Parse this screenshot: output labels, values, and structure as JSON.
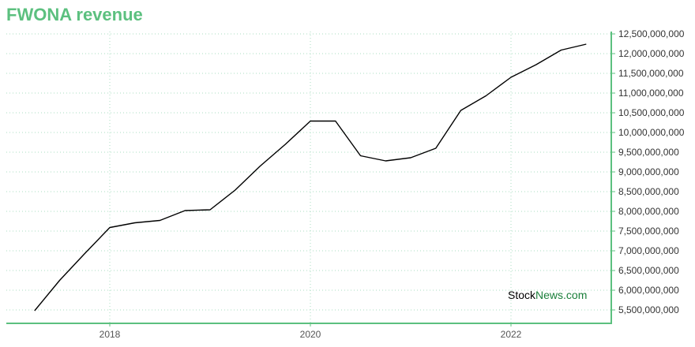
{
  "header": {
    "title": "FWONA revenue"
  },
  "watermark": {
    "part1": "Stock",
    "part2": "News",
    "part3": ".com"
  },
  "colors": {
    "title": "#5cc07f",
    "axis": "#5cc07f",
    "grid": "#a8dcc0",
    "line": "#000000"
  },
  "chart_data": {
    "type": "line",
    "title": "FWONA revenue",
    "xlabel": "",
    "ylabel": "",
    "xlim": [
      2017.0,
      2022.75
    ],
    "ylim": [
      5300000000,
      12600000000
    ],
    "x_ticks": [
      2018,
      2020,
      2022
    ],
    "x_tick_labels": [
      "2018",
      "2020",
      "2022"
    ],
    "y_ticks": [
      5500000000,
      6000000000,
      6500000000,
      7000000000,
      7500000000,
      8000000000,
      8500000000,
      9000000000,
      9500000000,
      10000000000,
      10500000000,
      11000000000,
      11500000000,
      12000000000,
      12500000000
    ],
    "y_tick_labels": [
      "5,500,000,000",
      "6,000,000,000",
      "6,500,000,000",
      "7,000,000,000",
      "7,500,000,000",
      "8,000,000,000",
      "8,500,000,000",
      "9,000,000,000",
      "9,500,000,000",
      "10,000,000,000",
      "10,500,000,000",
      "11,000,000,000",
      "11,500,000,000",
      "12,000,000,000",
      "12,500,000,000"
    ],
    "grid": true,
    "y_axis_position": "right",
    "series": [
      {
        "x": [
          2017.25,
          2017.5,
          2017.75,
          2018.0,
          2018.25,
          2018.5,
          2018.75,
          2019.0,
          2019.25,
          2019.5,
          2019.75,
          2020.0,
          2020.25,
          2020.5,
          2020.75,
          2021.0,
          2021.25,
          2021.5,
          2021.75,
          2022.0,
          2022.25,
          2022.5,
          2022.75
        ],
        "values": [
          5480000000,
          6250000000,
          6930000000,
          7590000000,
          7710000000,
          7770000000,
          8020000000,
          8040000000,
          8540000000,
          9150000000,
          9700000000,
          10290000000,
          10290000000,
          9410000000,
          9280000000,
          9360000000,
          9600000000,
          10560000000,
          10930000000,
          11400000000,
          11720000000,
          12090000000,
          12240000000
        ]
      }
    ]
  }
}
